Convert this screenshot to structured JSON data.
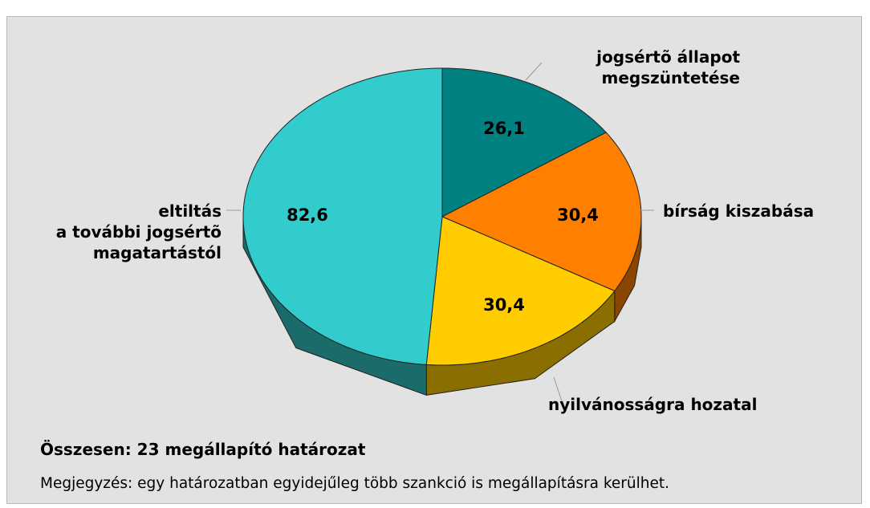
{
  "chart_data": {
    "type": "pie",
    "categories": [
      "jogsértõ állapot\nmegszüntetése",
      "bírság kiszabása",
      "nyilvánosságra hozatal",
      "eltiltás\na további jogsértõ\nmagatartástól"
    ],
    "values": [
      26.1,
      30.4,
      30.4,
      82.6
    ],
    "value_labels": [
      "26,1",
      "30,4",
      "30,4",
      "82,6"
    ],
    "colors": [
      "#008080",
      "#ff8000",
      "#ffcc00",
      "#33cccc"
    ],
    "side_colors": [
      "#005555",
      "#8a4500",
      "#8a6e00",
      "#1b6b6b"
    ],
    "notes": [
      "Összesen: 23 megállapító határozat",
      "Megjegyzés: egy határozatban egyidejűleg több szankció is megállapításra kerülhet."
    ]
  }
}
